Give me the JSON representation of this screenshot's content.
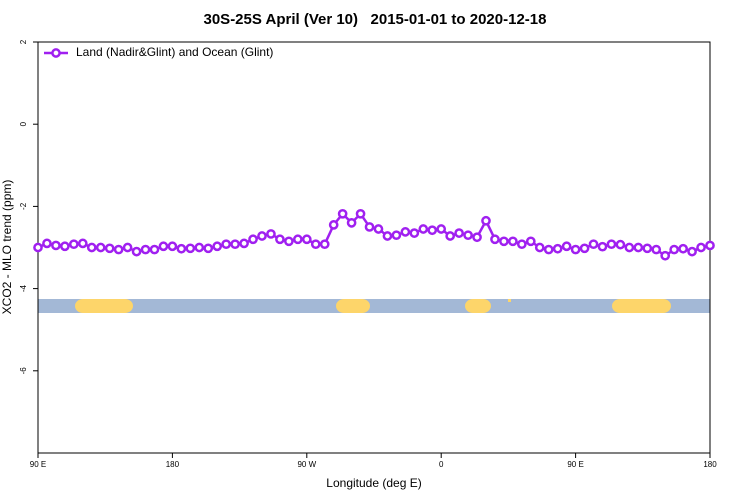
{
  "chart_data": {
    "type": "line",
    "title": "30S-25S April (Ver 10)   2015-01-01 to 2020-12-18",
    "x_label": "Longitude (deg E)",
    "y_label": "XCO2 - MLO trend (ppm)",
    "x": [
      90,
      96,
      102,
      108,
      114,
      120,
      126,
      132,
      138,
      144,
      150,
      156,
      162,
      168,
      174,
      180,
      186,
      192,
      198,
      204,
      210,
      216,
      222,
      228,
      234,
      240,
      246,
      252,
      258,
      264,
      270,
      276,
      282,
      288,
      294,
      300,
      306,
      312,
      318,
      324,
      330,
      336,
      342,
      348,
      354,
      360,
      366,
      372,
      378,
      384,
      390,
      396,
      402,
      408,
      414,
      420,
      426,
      432,
      438,
      444,
      450,
      456,
      462,
      468,
      474,
      480,
      486,
      492,
      498,
      504,
      510,
      516,
      522,
      528,
      534,
      540
    ],
    "series": [
      {
        "name": "Land (Nadir&Glint) and Ocean (Glint)",
        "color": "#a020f0",
        "values": [
          -3.0,
          -2.9,
          -2.95,
          -2.97,
          -2.92,
          -2.9,
          -3.0,
          -3.0,
          -3.02,
          -3.05,
          -3.0,
          -3.1,
          -3.05,
          -3.05,
          -2.97,
          -2.97,
          -3.03,
          -3.02,
          -3.0,
          -3.02,
          -2.97,
          -2.92,
          -2.92,
          -2.9,
          -2.8,
          -2.72,
          -2.67,
          -2.8,
          -2.85,
          -2.8,
          -2.8,
          -2.92,
          -2.92,
          -2.45,
          -2.18,
          -2.4,
          -2.18,
          -2.5,
          -2.55,
          -2.72,
          -2.7,
          -2.62,
          -2.65,
          -2.55,
          -2.58,
          -2.55,
          -2.72,
          -2.65,
          -2.7,
          -2.75,
          -2.35,
          -2.8,
          -2.85,
          -2.85,
          -2.92,
          -2.85,
          -3.0,
          -3.05,
          -3.03,
          -2.97,
          -3.05,
          -3.02,
          -2.92,
          -2.98,
          -2.92,
          -2.93,
          -3.0,
          -3.0,
          -3.02,
          -3.05,
          -3.2,
          -3.05,
          -3.03,
          -3.1,
          -3.0,
          -2.95
        ]
      }
    ],
    "xlim": [
      90,
      540
    ],
    "xticks": [
      {
        "value": 90,
        "label": "90 E"
      },
      180,
      {
        "value": 270,
        "label": "90 W"
      },
      {
        "value": 360,
        "label": "0"
      },
      {
        "value": 450,
        "label": "90 E"
      },
      {
        "value": 540,
        "label": "180"
      }
    ],
    "ylim": [
      -8,
      2
    ],
    "yticks": [
      2,
      0,
      -2,
      -4,
      -6
    ],
    "legend": "top-left",
    "grid": false
  }
}
